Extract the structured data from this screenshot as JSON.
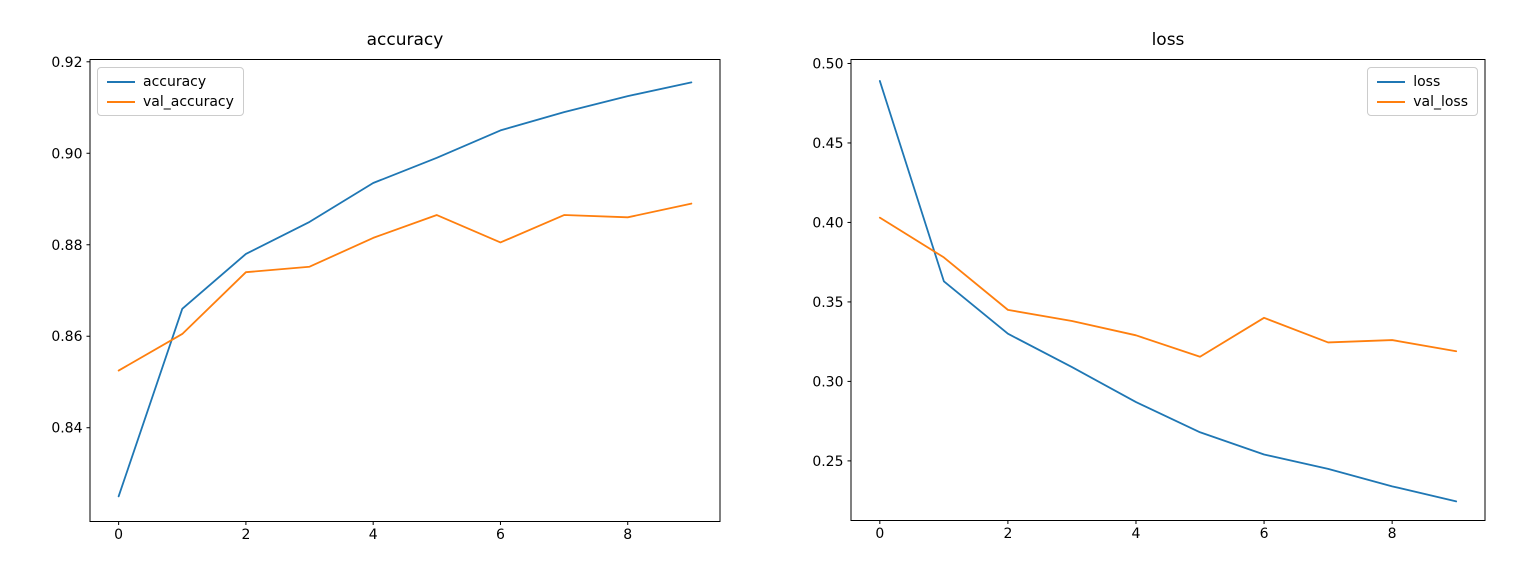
{
  "figure": {
    "background": "#ffffff",
    "text_color": "#000000",
    "spine_color": "#000000"
  },
  "chart_data": [
    {
      "type": "line",
      "title": "accuracy",
      "xlabel": "",
      "ylabel": "",
      "x": [
        0,
        1,
        2,
        3,
        4,
        5,
        6,
        7,
        8,
        9
      ],
      "series": [
        {
          "name": "accuracy",
          "color": "#1f77b4",
          "values": [
            0.825,
            0.866,
            0.878,
            0.885,
            0.8935,
            0.899,
            0.905,
            0.909,
            0.9125,
            0.9155
          ]
        },
        {
          "name": "val_accuracy",
          "color": "#ff7f0e",
          "values": [
            0.8525,
            0.8605,
            0.874,
            0.8752,
            0.8815,
            0.8865,
            0.8805,
            0.8865,
            0.886,
            0.889
          ]
        }
      ],
      "xlim": [
        -0.45,
        9.45
      ],
      "ylim": [
        0.8195,
        0.9205
      ],
      "xticks": [
        0,
        2,
        4,
        6,
        8
      ],
      "xtick_labels": [
        "0",
        "2",
        "4",
        "6",
        "8"
      ],
      "yticks": [
        0.84,
        0.86,
        0.88,
        0.9,
        0.92
      ],
      "ytick_labels": [
        "0.84",
        "0.86",
        "0.88",
        "0.90",
        "0.92"
      ],
      "grid": false,
      "legend_position": "top-left",
      "legend_entries": [
        "accuracy",
        "val_accuracy"
      ]
    },
    {
      "type": "line",
      "title": "loss",
      "xlabel": "",
      "ylabel": "",
      "x": [
        0,
        1,
        2,
        3,
        4,
        5,
        6,
        7,
        8,
        9
      ],
      "series": [
        {
          "name": "loss",
          "color": "#1f77b4",
          "values": [
            0.489,
            0.363,
            0.33,
            0.309,
            0.287,
            0.268,
            0.254,
            0.245,
            0.234,
            0.2245
          ]
        },
        {
          "name": "val_loss",
          "color": "#ff7f0e",
          "values": [
            0.403,
            0.378,
            0.345,
            0.338,
            0.329,
            0.3155,
            0.34,
            0.3245,
            0.326,
            0.319
          ]
        }
      ],
      "xlim": [
        -0.45,
        9.45
      ],
      "ylim": [
        0.2125,
        0.5025
      ],
      "xticks": [
        0,
        2,
        4,
        6,
        8
      ],
      "xtick_labels": [
        "0",
        "2",
        "4",
        "6",
        "8"
      ],
      "yticks": [
        0.25,
        0.3,
        0.35,
        0.4,
        0.45,
        0.5
      ],
      "ytick_labels": [
        "0.25",
        "0.30",
        "0.35",
        "0.40",
        "0.45",
        "0.50"
      ],
      "grid": false,
      "legend_position": "top-right",
      "legend_entries": [
        "loss",
        "val_loss"
      ]
    }
  ]
}
